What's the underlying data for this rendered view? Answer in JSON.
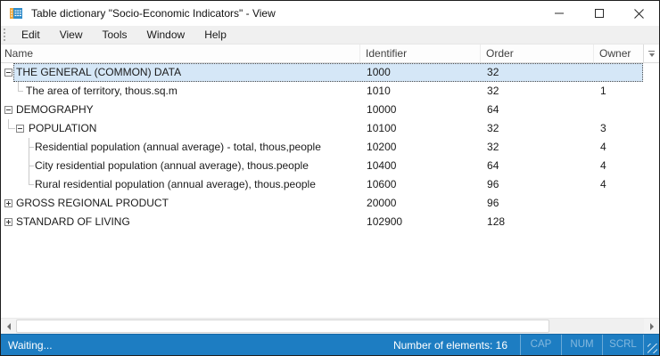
{
  "window": {
    "title": "Table dictionary \"Socio-Economic Indicators\" - View",
    "controls": {
      "minimize": "minimize",
      "maximize": "maximize",
      "close": "close"
    }
  },
  "menu": {
    "items": [
      "Edit",
      "View",
      "Tools",
      "Window",
      "Help"
    ]
  },
  "grid": {
    "columns": {
      "name": "Name",
      "identifier": "Identifier",
      "order": "Order",
      "owner": "Owner"
    },
    "rows": [
      {
        "name": "THE GENERAL (COMMON) DATA",
        "identifier": "1000",
        "order": "32",
        "owner": "",
        "level": 0,
        "glyph": "minus",
        "connector": "none",
        "selected": true
      },
      {
        "name": "The area of territory, thous.sq.m",
        "identifier": "1010",
        "order": "32",
        "owner": "1",
        "level": 1,
        "glyph": "none",
        "connector": "elbow1",
        "selected": false
      },
      {
        "name": "DEMOGRAPHY",
        "identifier": "10000",
        "order": "64",
        "owner": "",
        "level": 0,
        "glyph": "minus",
        "connector": "none",
        "selected": false
      },
      {
        "name": "POPULATION",
        "identifier": "10100",
        "order": "32",
        "owner": "3",
        "level": 1,
        "glyph": "minus",
        "connector": "elbow-box",
        "selected": false
      },
      {
        "name": "Residential population (annual average) - total, thous,people",
        "identifier": "10200",
        "order": "32",
        "owner": "4",
        "level": 2,
        "glyph": "none",
        "connector": "tee2",
        "selected": false
      },
      {
        "name": "City residential population (annual average), thous.people",
        "identifier": "10400",
        "order": "64",
        "owner": "4",
        "level": 2,
        "glyph": "none",
        "connector": "tee2",
        "selected": false
      },
      {
        "name": "Rural residential population (annual average), thous.people",
        "identifier": "10600",
        "order": "96",
        "owner": "4",
        "level": 2,
        "glyph": "none",
        "connector": "elbow2",
        "selected": false
      },
      {
        "name": "GROSS REGIONAL PRODUCT",
        "identifier": "20000",
        "order": "96",
        "owner": "",
        "level": 0,
        "glyph": "plus",
        "connector": "none",
        "selected": false
      },
      {
        "name": "STANDARD OF LIVING",
        "identifier": "102900",
        "order": "128",
        "owner": "",
        "level": 0,
        "glyph": "plus",
        "connector": "none",
        "selected": false
      }
    ]
  },
  "status": {
    "left": "Waiting...",
    "elements": "Number of elements: 16",
    "indicators": [
      "CAP",
      "NUM",
      "SCRL"
    ]
  },
  "colors": {
    "statusbar": "#1d7dc2",
    "selection": "#d5e7f7",
    "icon_blue": "#2e8bc9",
    "icon_orange": "#eda63a"
  }
}
